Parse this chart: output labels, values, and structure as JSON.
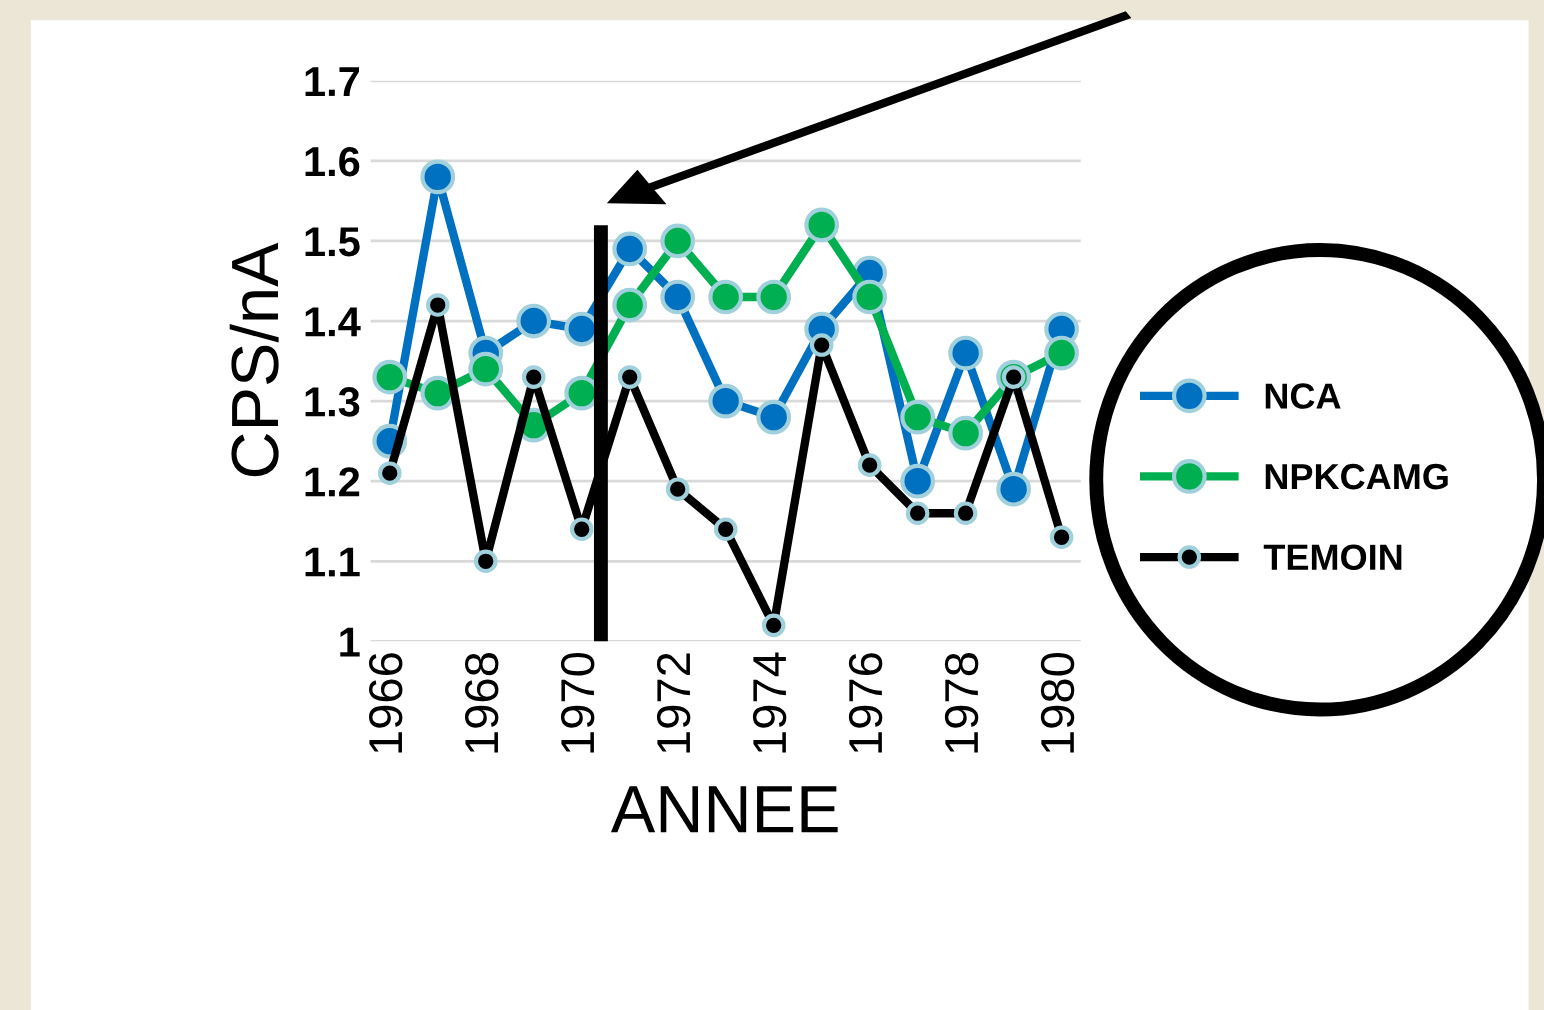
{
  "chart_data": {
    "type": "line",
    "xlabel": "ANNEE",
    "ylabel": "CPS/nA",
    "x": [
      1966,
      1967,
      1968,
      1969,
      1970,
      1971,
      1972,
      1973,
      1974,
      1975,
      1976,
      1977,
      1978,
      1979,
      1980
    ],
    "series": [
      {
        "name": "NCA",
        "color": "#0070c0",
        "values": [
          1.25,
          1.58,
          1.36,
          1.4,
          1.39,
          1.49,
          1.43,
          1.3,
          1.28,
          1.39,
          1.46,
          1.2,
          1.36,
          1.19,
          1.39
        ]
      },
      {
        "name": "NPKCAMG",
        "color": "#00b050",
        "values": [
          1.33,
          1.31,
          1.34,
          1.27,
          1.31,
          1.42,
          1.5,
          1.43,
          1.43,
          1.52,
          1.43,
          1.28,
          1.26,
          1.33,
          1.36
        ]
      },
      {
        "name": "TEMOIN",
        "color": "#000000",
        "values": [
          1.21,
          1.42,
          1.1,
          1.33,
          1.14,
          1.33,
          1.19,
          1.14,
          1.02,
          1.37,
          1.22,
          1.16,
          1.16,
          1.33,
          1.13
        ]
      }
    ],
    "xlim": [
      1965.6,
      1980.4
    ],
    "xticks": [
      1966,
      1968,
      1970,
      1972,
      1974,
      1976,
      1978,
      1980
    ],
    "ylim": [
      1,
      1.7
    ],
    "yticks": [
      1,
      1.1,
      1.2,
      1.3,
      1.4,
      1.5,
      1.6,
      1.7
    ],
    "ref_lines": [
      {
        "axis": "x",
        "value": 1970.4,
        "color": "#000000"
      }
    ],
    "grid": "y",
    "legend": "right",
    "marker": "circle",
    "line_style": "solid"
  }
}
